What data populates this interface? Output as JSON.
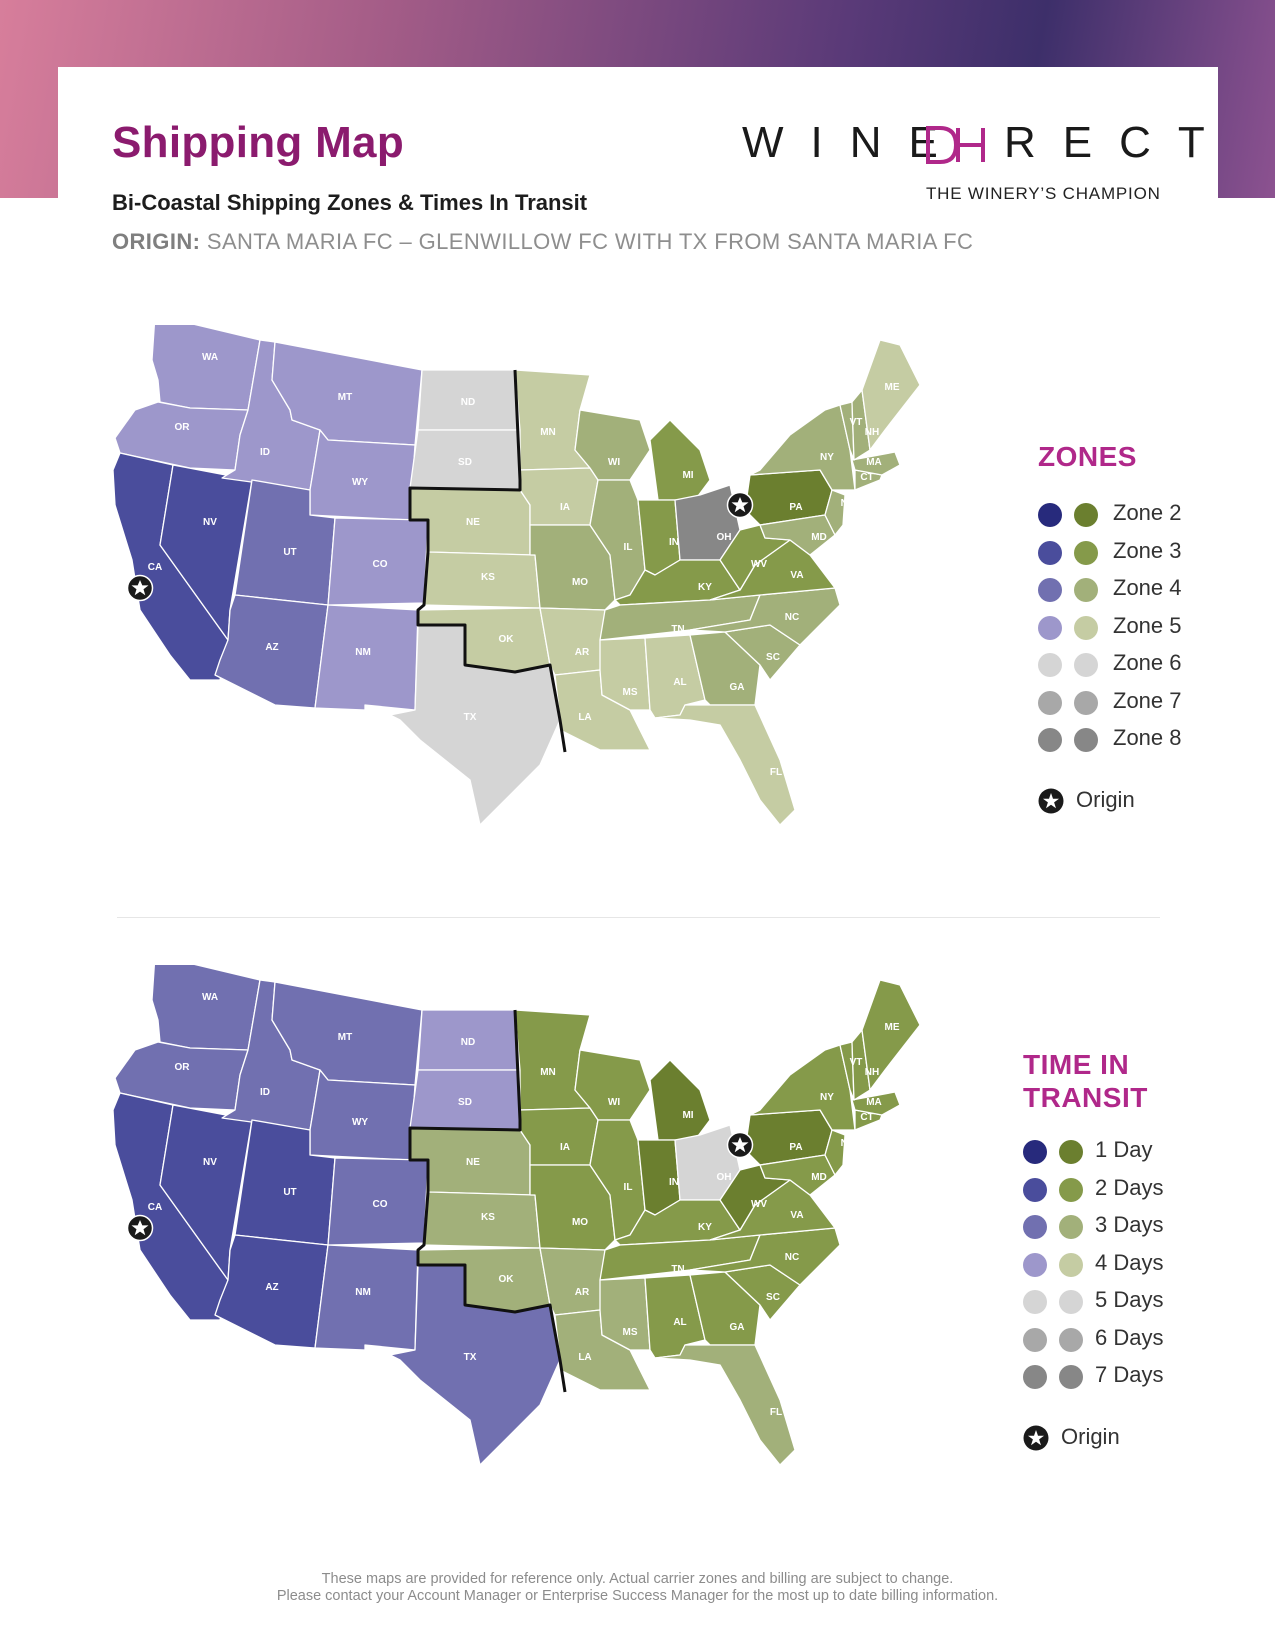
{
  "header": {
    "title": "Shipping Map",
    "subtitle": "Bi-Coastal Shipping Zones & Times In Transit",
    "origin_prefix": "ORIGIN:",
    "origin_text": "SANTA MARIA FC – GLENWILLOW FC WITH TX FROM SANTA MARIA FC"
  },
  "logo": {
    "word_left": "WINE",
    "word_right": "RECT",
    "tagline": "THE WINERY’S CHAMPION",
    "accent_color": "#b0288a"
  },
  "zones_legend": {
    "title": "ZONES",
    "items": [
      {
        "label": "Zone 2",
        "west_color": "#272a7c",
        "east_color": "#6b7f2f"
      },
      {
        "label": "Zone 3",
        "west_color": "#4a4d9c",
        "east_color": "#859a4a"
      },
      {
        "label": "Zone 4",
        "west_color": "#7170b0",
        "east_color": "#a2b07a"
      },
      {
        "label": "Zone 5",
        "west_color": "#9d97cb",
        "east_color": "#c5cca3"
      },
      {
        "label": "Zone 6",
        "west_color": "#d5d5d5",
        "east_color": "#d5d5d5"
      },
      {
        "label": "Zone 7",
        "west_color": "#a8a8a8",
        "east_color": "#a8a8a8"
      },
      {
        "label": "Zone 8",
        "west_color": "#878787",
        "east_color": "#878787"
      }
    ],
    "origin_label": "Origin"
  },
  "transit_legend": {
    "title_line1": "TIME IN",
    "title_line2": "TRANSIT",
    "items": [
      {
        "label": "1 Day",
        "west_color": "#272a7c",
        "east_color": "#6b7f2f"
      },
      {
        "label": "2 Days",
        "west_color": "#4a4d9c",
        "east_color": "#859a4a"
      },
      {
        "label": "3 Days",
        "west_color": "#7170b0",
        "east_color": "#a2b07a"
      },
      {
        "label": "4 Days",
        "west_color": "#9d97cb",
        "east_color": "#c5cca3"
      },
      {
        "label": "5 Days",
        "west_color": "#d5d5d5",
        "east_color": "#d5d5d5"
      },
      {
        "label": "6 Days",
        "west_color": "#a8a8a8",
        "east_color": "#a8a8a8"
      },
      {
        "label": "7 Days",
        "west_color": "#878787",
        "east_color": "#878787"
      }
    ],
    "origin_label": "Origin"
  },
  "map_zones": {
    "states": [
      {
        "abbr": "WA",
        "color": "#9d97cb"
      },
      {
        "abbr": "OR",
        "color": "#9d97cb"
      },
      {
        "abbr": "CA",
        "color": "#4a4d9c"
      },
      {
        "abbr": "NV",
        "color": "#4a4d9c"
      },
      {
        "abbr": "ID",
        "color": "#9d97cb"
      },
      {
        "abbr": "MT",
        "color": "#9d97cb"
      },
      {
        "abbr": "WY",
        "color": "#9d97cb"
      },
      {
        "abbr": "UT",
        "color": "#7170b0"
      },
      {
        "abbr": "AZ",
        "color": "#7170b0"
      },
      {
        "abbr": "CO",
        "color": "#9d97cb"
      },
      {
        "abbr": "NM",
        "color": "#9d97cb"
      },
      {
        "abbr": "ND",
        "color": "#d5d5d5"
      },
      {
        "abbr": "SD",
        "color": "#d5d5d5"
      },
      {
        "abbr": "NE",
        "color": "#c5cca3"
      },
      {
        "abbr": "KS",
        "color": "#c5cca3"
      },
      {
        "abbr": "OK",
        "color": "#c5cca3"
      },
      {
        "abbr": "TX",
        "color": "#d5d5d5"
      },
      {
        "abbr": "MN",
        "color": "#c5cca3"
      },
      {
        "abbr": "IA",
        "color": "#c5cca3"
      },
      {
        "abbr": "MO",
        "color": "#a2b07a"
      },
      {
        "abbr": "AR",
        "color": "#c5cca3"
      },
      {
        "abbr": "LA",
        "color": "#c5cca3"
      },
      {
        "abbr": "WI",
        "color": "#a2b07a"
      },
      {
        "abbr": "IL",
        "color": "#a2b07a"
      },
      {
        "abbr": "MI",
        "color": "#859a4a"
      },
      {
        "abbr": "IN",
        "color": "#859a4a"
      },
      {
        "abbr": "OH",
        "color": "#878787"
      },
      {
        "abbr": "KY",
        "color": "#859a4a"
      },
      {
        "abbr": "TN",
        "color": "#a2b07a"
      },
      {
        "abbr": "MS",
        "color": "#c5cca3"
      },
      {
        "abbr": "AL",
        "color": "#c5cca3"
      },
      {
        "abbr": "GA",
        "color": "#a2b07a"
      },
      {
        "abbr": "FL",
        "color": "#c5cca3"
      },
      {
        "abbr": "SC",
        "color": "#a2b07a"
      },
      {
        "abbr": "NC",
        "color": "#a2b07a"
      },
      {
        "abbr": "VA",
        "color": "#859a4a"
      },
      {
        "abbr": "WV",
        "color": "#859a4a"
      },
      {
        "abbr": "PA",
        "color": "#6b7f2f"
      },
      {
        "abbr": "NY",
        "color": "#a2b07a"
      },
      {
        "abbr": "MD",
        "color": "#a2b07a"
      },
      {
        "abbr": "NJ",
        "color": "#a2b07a"
      },
      {
        "abbr": "CT",
        "color": "#a2b07a"
      },
      {
        "abbr": "MA",
        "color": "#a2b07a"
      },
      {
        "abbr": "VT",
        "color": "#a2b07a"
      },
      {
        "abbr": "NH",
        "color": "#a2b07a"
      },
      {
        "abbr": "ME",
        "color": "#c5cca3"
      }
    ],
    "origins": [
      "CA",
      "OH"
    ]
  },
  "map_transit": {
    "states": [
      {
        "abbr": "WA",
        "color": "#7170b0"
      },
      {
        "abbr": "OR",
        "color": "#7170b0"
      },
      {
        "abbr": "CA",
        "color": "#4a4d9c"
      },
      {
        "abbr": "NV",
        "color": "#4a4d9c"
      },
      {
        "abbr": "ID",
        "color": "#7170b0"
      },
      {
        "abbr": "MT",
        "color": "#7170b0"
      },
      {
        "abbr": "WY",
        "color": "#7170b0"
      },
      {
        "abbr": "UT",
        "color": "#4a4d9c"
      },
      {
        "abbr": "AZ",
        "color": "#4a4d9c"
      },
      {
        "abbr": "CO",
        "color": "#7170b0"
      },
      {
        "abbr": "NM",
        "color": "#7170b0"
      },
      {
        "abbr": "ND",
        "color": "#9d97cb"
      },
      {
        "abbr": "SD",
        "color": "#9d97cb"
      },
      {
        "abbr": "NE",
        "color": "#a2b07a"
      },
      {
        "abbr": "KS",
        "color": "#a2b07a"
      },
      {
        "abbr": "OK",
        "color": "#a2b07a"
      },
      {
        "abbr": "TX",
        "color": "#7170b0"
      },
      {
        "abbr": "MN",
        "color": "#859a4a"
      },
      {
        "abbr": "IA",
        "color": "#859a4a"
      },
      {
        "abbr": "MO",
        "color": "#859a4a"
      },
      {
        "abbr": "AR",
        "color": "#a2b07a"
      },
      {
        "abbr": "LA",
        "color": "#a2b07a"
      },
      {
        "abbr": "WI",
        "color": "#859a4a"
      },
      {
        "abbr": "IL",
        "color": "#859a4a"
      },
      {
        "abbr": "MI",
        "color": "#6b7f2f"
      },
      {
        "abbr": "IN",
        "color": "#6b7f2f"
      },
      {
        "abbr": "OH",
        "color": "#d5d5d5"
      },
      {
        "abbr": "KY",
        "color": "#859a4a"
      },
      {
        "abbr": "TN",
        "color": "#859a4a"
      },
      {
        "abbr": "MS",
        "color": "#a2b07a"
      },
      {
        "abbr": "AL",
        "color": "#859a4a"
      },
      {
        "abbr": "GA",
        "color": "#859a4a"
      },
      {
        "abbr": "FL",
        "color": "#a2b07a"
      },
      {
        "abbr": "SC",
        "color": "#859a4a"
      },
      {
        "abbr": "NC",
        "color": "#859a4a"
      },
      {
        "abbr": "VA",
        "color": "#859a4a"
      },
      {
        "abbr": "WV",
        "color": "#6b7f2f"
      },
      {
        "abbr": "PA",
        "color": "#6b7f2f"
      },
      {
        "abbr": "NY",
        "color": "#859a4a"
      },
      {
        "abbr": "MD",
        "color": "#859a4a"
      },
      {
        "abbr": "NJ",
        "color": "#859a4a"
      },
      {
        "abbr": "CT",
        "color": "#859a4a"
      },
      {
        "abbr": "MA",
        "color": "#859a4a"
      },
      {
        "abbr": "VT",
        "color": "#859a4a"
      },
      {
        "abbr": "NH",
        "color": "#859a4a"
      },
      {
        "abbr": "ME",
        "color": "#859a4a"
      }
    ],
    "origins": [
      "CA",
      "OH"
    ]
  },
  "footer": {
    "line1": "These maps are provided for reference only. Actual carrier zones and billing are subject to change.",
    "line2": "Please contact your Account Manager or Enterprise Success Manager for the most up to date billing information."
  }
}
